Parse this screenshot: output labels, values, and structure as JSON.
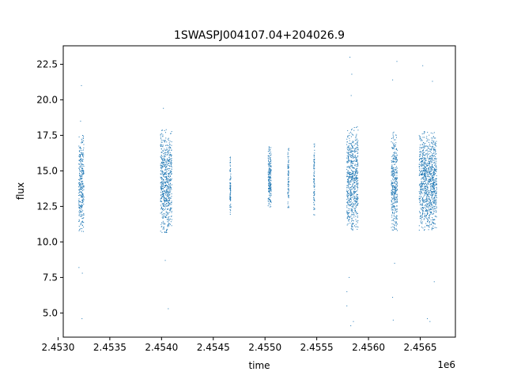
{
  "chart_data": {
    "type": "scatter",
    "title": "1SWASPJ004107.04+204026.9",
    "xlabel": "time",
    "ylabel": "flux",
    "x_offset_label": "1e6",
    "xlim": [
      2.45305,
      2.45684
    ],
    "ylim": [
      3.3,
      23.8
    ],
    "x_ticks": [
      2.453,
      2.4535,
      2.454,
      2.4545,
      2.455,
      2.4555,
      2.456,
      2.4565
    ],
    "x_tick_labels": [
      "2.4530",
      "2.4535",
      "2.4540",
      "2.4545",
      "2.4550",
      "2.4555",
      "2.4560",
      "2.4565"
    ],
    "y_ticks": [
      5.0,
      7.5,
      10.0,
      12.5,
      15.0,
      17.5,
      20.0,
      22.5
    ],
    "y_tick_labels": [
      "5.0",
      "7.5",
      "10.0",
      "12.5",
      "15.0",
      "17.5",
      "20.0",
      "22.5"
    ],
    "grid": false,
    "marker_color": "#1f77b4",
    "series": [
      {
        "values_summary": "observation seasons (time in units of 1e6, flux range)",
        "clusters": [
          {
            "x_start": 2.4532,
            "x_end": 2.45325,
            "y_min": 10.6,
            "y_max": 17.5,
            "outliers": [
              4.6,
              7.8,
              8.2,
              18.5,
              21.0
            ]
          },
          {
            "x_start": 2.45399,
            "x_end": 2.4541,
            "y_min": 10.6,
            "y_max": 17.9,
            "outliers": [
              5.3,
              8.7,
              19.4
            ]
          },
          {
            "x_start": 2.45466,
            "x_end": 2.45467,
            "y_min": 11.8,
            "y_max": 16.0,
            "outliers": []
          },
          {
            "x_start": 2.45503,
            "x_end": 2.45506,
            "y_min": 12.4,
            "y_max": 16.7,
            "outliers": []
          },
          {
            "x_start": 2.45522,
            "x_end": 2.45523,
            "y_min": 12.2,
            "y_max": 16.8,
            "outliers": []
          },
          {
            "x_start": 2.45547,
            "x_end": 2.45548,
            "y_min": 11.7,
            "y_max": 17.0,
            "outliers": []
          },
          {
            "x_start": 2.45579,
            "x_end": 2.4559,
            "y_min": 10.8,
            "y_max": 18.2,
            "outliers": [
              4.1,
              4.4,
              5.5,
              6.5,
              7.5,
              20.3,
              21.8,
              23.0
            ]
          },
          {
            "x_start": 2.45622,
            "x_end": 2.45628,
            "y_min": 10.8,
            "y_max": 17.8,
            "outliers": [
              4.5,
              6.1,
              8.5,
              21.4,
              22.7
            ]
          },
          {
            "x_start": 2.45649,
            "x_end": 2.45666,
            "y_min": 10.8,
            "y_max": 17.8,
            "outliers": [
              4.4,
              4.6,
              7.2,
              21.3,
              22.4
            ]
          }
        ]
      }
    ]
  }
}
